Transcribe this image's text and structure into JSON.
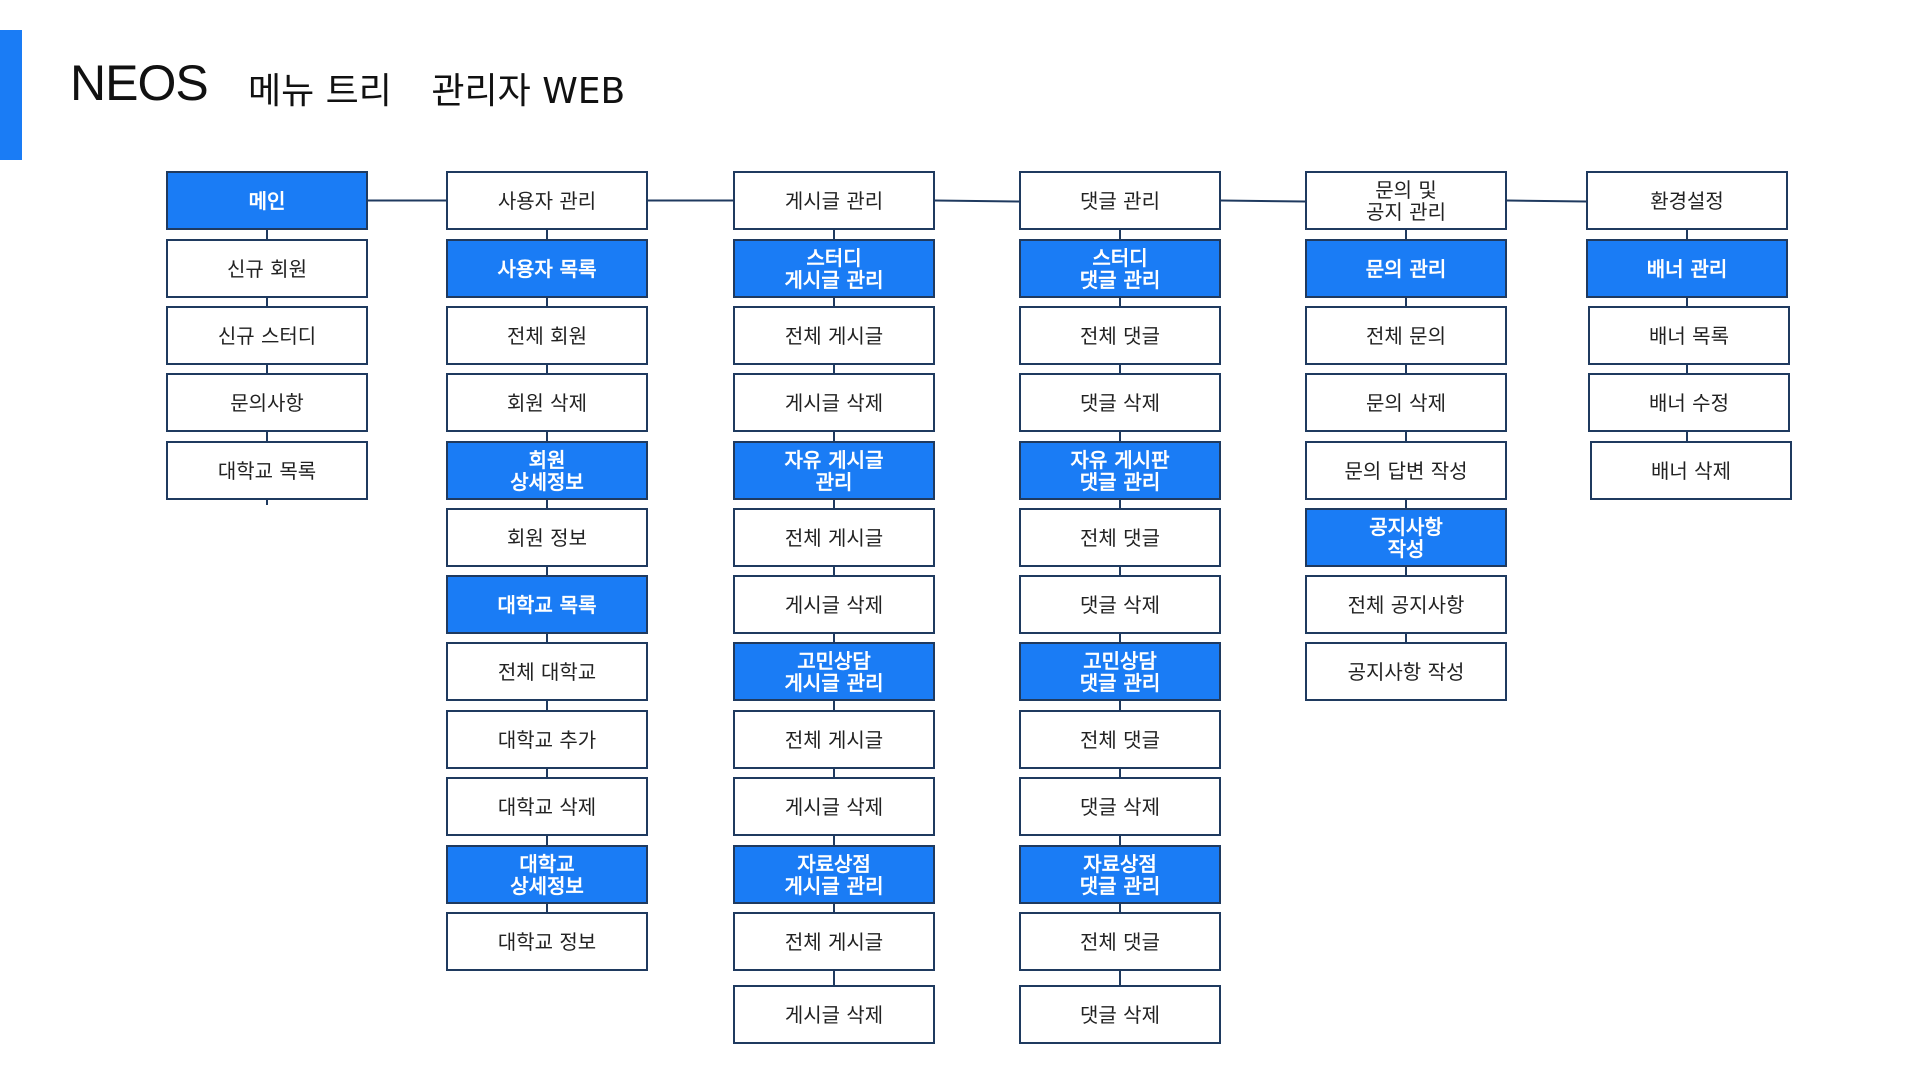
{
  "header": {
    "logo": "NEOS",
    "title": "메뉴 트리",
    "subtitle": "관리자 WEB"
  },
  "colors": {
    "accent": "#1a7cf5",
    "border": "#1f3a5f",
    "text": "#222222"
  },
  "columns": [
    {
      "items": [
        {
          "label": "메인",
          "highlight": true
        },
        {
          "label": "신규 회원"
        },
        {
          "label": "신규 스터디"
        },
        {
          "label": "문의사항"
        },
        {
          "label": "대학교 목록"
        }
      ]
    },
    {
      "items": [
        {
          "label": "사용자 관리"
        },
        {
          "label": "사용자 목록",
          "highlight": true
        },
        {
          "label": "전체 회원"
        },
        {
          "label": "회원 삭제"
        },
        {
          "label": "회원\n상세정보",
          "highlight": true
        },
        {
          "label": "회원 정보"
        },
        {
          "label": "대학교 목록",
          "highlight": true
        },
        {
          "label": "전체 대학교"
        },
        {
          "label": "대학교 추가"
        },
        {
          "label": "대학교 삭제"
        },
        {
          "label": "대학교\n상세정보",
          "highlight": true
        },
        {
          "label": "대학교 정보"
        }
      ]
    },
    {
      "items": [
        {
          "label": "게시글 관리"
        },
        {
          "label": "스터디\n게시글 관리",
          "highlight": true
        },
        {
          "label": "전체 게시글"
        },
        {
          "label": "게시글 삭제"
        },
        {
          "label": "자유 게시글\n관리",
          "highlight": true
        },
        {
          "label": "전체 게시글"
        },
        {
          "label": "게시글 삭제"
        },
        {
          "label": "고민상담\n게시글 관리",
          "highlight": true
        },
        {
          "label": "전체 게시글"
        },
        {
          "label": "게시글 삭제"
        },
        {
          "label": "자료상점\n게시글 관리",
          "highlight": true
        },
        {
          "label": "전체 게시글"
        },
        {
          "label": "게시글 삭제"
        }
      ]
    },
    {
      "items": [
        {
          "label": "댓글 관리"
        },
        {
          "label": "스터디\n댓글 관리",
          "highlight": true
        },
        {
          "label": "전체 댓글"
        },
        {
          "label": "댓글 삭제"
        },
        {
          "label": "자유 게시판\n댓글 관리",
          "highlight": true
        },
        {
          "label": "전체 댓글"
        },
        {
          "label": "댓글 삭제"
        },
        {
          "label": "고민상담\n댓글 관리",
          "highlight": true
        },
        {
          "label": "전체 댓글"
        },
        {
          "label": "댓글 삭제"
        },
        {
          "label": "자료상점\n댓글 관리",
          "highlight": true
        },
        {
          "label": "전체 댓글"
        },
        {
          "label": "댓글 삭제"
        }
      ]
    },
    {
      "items": [
        {
          "label": "문의 및\n공지 관리"
        },
        {
          "label": "문의 관리",
          "highlight": true
        },
        {
          "label": "전체 문의"
        },
        {
          "label": "문의 삭제"
        },
        {
          "label": "문의 답변 작성"
        },
        {
          "label": "공지사항\n작성",
          "highlight": true
        },
        {
          "label": "전체 공지사항"
        },
        {
          "label": "공지사항 작성"
        }
      ]
    },
    {
      "items": [
        {
          "label": "환경설정"
        },
        {
          "label": "배너 관리",
          "highlight": true
        },
        {
          "label": "배너 목록"
        },
        {
          "label": "배너 수정"
        },
        {
          "label": "배너 삭제"
        }
      ]
    }
  ]
}
